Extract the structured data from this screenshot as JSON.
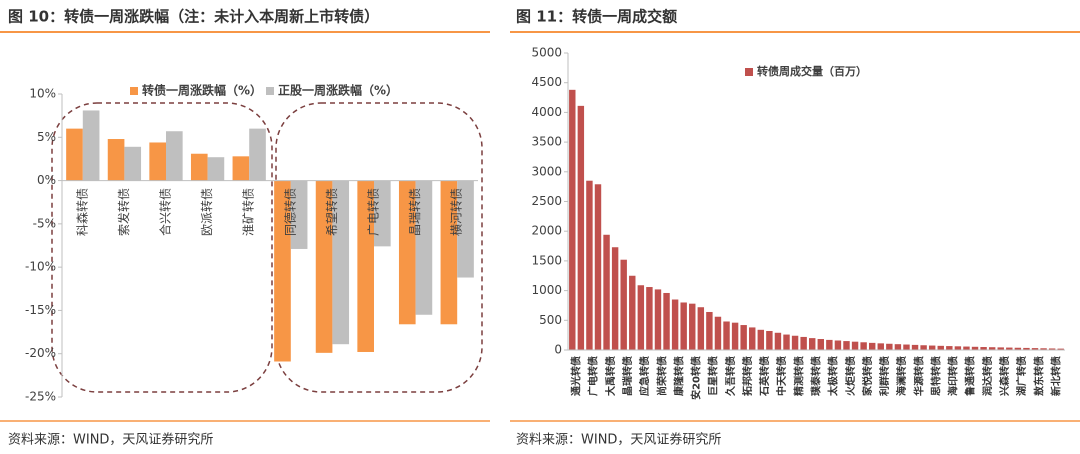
{
  "chart_data": [
    {
      "type": "bar",
      "title": "图 10：转债一周涨跌幅（注：未计入本周新上市转债）",
      "source": "资料来源：WIND，天风证券研究所",
      "categories": [
        "科森转债",
        "索发转债",
        "合兴转债",
        "欧派转债",
        "淮矿转债",
        "同德转债",
        "希望转债",
        "广电转债",
        "晶瑞转债",
        "横河转债"
      ],
      "series": [
        {
          "name": "转债一周涨跌幅（%）",
          "color": "#f79646",
          "values": [
            6.0,
            4.8,
            4.4,
            3.1,
            2.8,
            -20.9,
            -19.9,
            -19.8,
            -16.6,
            -16.6
          ]
        },
        {
          "name": "正股一周涨跌幅（%）",
          "color": "#bfbfbf",
          "values": [
            8.1,
            3.9,
            5.7,
            2.7,
            6.0,
            -7.9,
            -18.9,
            -7.6,
            -15.5,
            -11.2
          ]
        }
      ],
      "ylim": [
        -25,
        10
      ],
      "yticks": [
        {
          "value": -25,
          "label": "-25%"
        },
        {
          "value": -20,
          "label": "-20%"
        },
        {
          "value": -15,
          "label": "-15%"
        },
        {
          "value": -10,
          "label": "-10%"
        },
        {
          "value": -5,
          "label": "-5%"
        },
        {
          "value": 0,
          "label": "0%"
        },
        {
          "value": 5,
          "label": "5%"
        },
        {
          "value": 10,
          "label": "10%"
        }
      ],
      "grid": false,
      "legend": "top"
    },
    {
      "type": "bar",
      "title": "图 11：转债一周成交额",
      "source": "资料来源：WIND，天风证券研究所",
      "categories": [
        "通光转债",
        null,
        "广电转债",
        null,
        "大禹转债",
        null,
        "晶瑞转债",
        null,
        "应急转债",
        null,
        "尚荣转债",
        null,
        "康隆转债",
        null,
        "安20转债",
        null,
        "巨星转债",
        null,
        "久吾转债",
        null,
        "拓邦转债",
        null,
        "石英转债",
        null,
        "中天转债",
        null,
        "精测转债",
        null,
        "璞泰转债",
        null,
        "太极转债",
        null,
        "火炬转债",
        null,
        "家悦转债",
        null,
        "利群转债",
        null,
        "海澜转债",
        null,
        "华源转债",
        null,
        "思特转债",
        null,
        "海印转债",
        null,
        "鲁通转债",
        null,
        "润达转债",
        null,
        "兴森转债",
        null,
        "湖广转债",
        null,
        "敖东转债",
        null,
        "新北转债",
        null
      ],
      "series": [
        {
          "name": "转债周成交量（百万）",
          "color": "#c0504d",
          "values": [
            4380,
            4110,
            2850,
            2790,
            1940,
            1730,
            1520,
            1250,
            1090,
            1060,
            1020,
            960,
            850,
            800,
            780,
            720,
            640,
            560,
            480,
            460,
            420,
            380,
            340,
            320,
            290,
            260,
            240,
            220,
            200,
            185,
            170,
            160,
            150,
            140,
            130,
            120,
            112,
            105,
            98,
            92,
            86,
            80,
            75,
            70,
            66,
            62,
            58,
            54,
            50,
            47,
            44,
            41,
            38,
            35,
            32,
            29,
            26,
            23
          ]
        }
      ],
      "ylim": [
        0,
        5000
      ],
      "yticks": [
        0,
        500,
        1000,
        1500,
        2000,
        2500,
        3000,
        3500,
        4000,
        4500,
        5000
      ],
      "grid": false,
      "legend": "top"
    }
  ]
}
